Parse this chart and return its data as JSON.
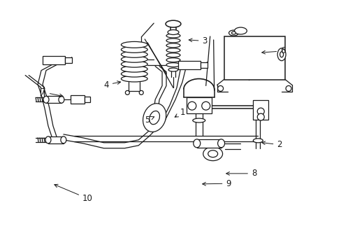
{
  "background_color": "#ffffff",
  "line_color": "#1a1a1a",
  "lw": 0.9,
  "label_fontsize": 8.5,
  "labels": {
    "1": [
      0.535,
      0.555,
      0.505,
      0.53
    ],
    "2": [
      0.82,
      0.425,
      0.76,
      0.435
    ],
    "3": [
      0.6,
      0.84,
      0.545,
      0.845
    ],
    "4": [
      0.31,
      0.665,
      0.36,
      0.678
    ],
    "5": [
      0.43,
      0.525,
      0.453,
      0.538
    ],
    "6": [
      0.83,
      0.8,
      0.76,
      0.793
    ],
    "7": [
      0.125,
      0.635,
      0.19,
      0.617
    ],
    "8": [
      0.745,
      0.31,
      0.655,
      0.31
    ],
    "9": [
      0.67,
      0.27,
      0.585,
      0.268
    ],
    "10": [
      0.255,
      0.21,
      0.15,
      0.27
    ]
  }
}
